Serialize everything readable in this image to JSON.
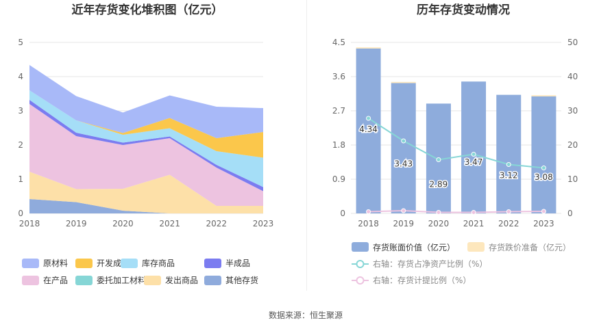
{
  "source_label": "数据来源：恒生聚源",
  "chart_data": [
    {
      "type": "area",
      "stacked": true,
      "title": "近年存货变化堆积图（亿元）",
      "categories": [
        "2018",
        "2019",
        "2020",
        "2021",
        "2022",
        "2023"
      ],
      "ylim": [
        0,
        5
      ],
      "yticks": [
        0,
        1,
        2,
        3,
        4,
        5
      ],
      "grid": true,
      "legend_position": "bottom",
      "series": [
        {
          "name": "其他存货",
          "color": "#8fabdc",
          "values": [
            0.42,
            0.33,
            0.08,
            0.0,
            0.0,
            0.0
          ]
        },
        {
          "name": "发出商品",
          "color": "#fde0a8",
          "values": [
            0.8,
            0.38,
            0.64,
            1.13,
            0.22,
            0.22
          ]
        },
        {
          "name": "委托加工材料",
          "color": "#86d6d6",
          "values": [
            0.0,
            0.0,
            0.0,
            0.0,
            0.0,
            0.0
          ]
        },
        {
          "name": "在产品",
          "color": "#edc3e0",
          "values": [
            1.98,
            1.55,
            1.28,
            1.07,
            1.12,
            0.43
          ]
        },
        {
          "name": "半成品",
          "color": "#7b7cf0",
          "values": [
            0.12,
            0.1,
            0.07,
            0.05,
            0.08,
            0.12
          ]
        },
        {
          "name": "库存商品",
          "color": "#a5def7",
          "values": [
            0.28,
            0.36,
            0.23,
            0.24,
            0.4,
            0.86
          ]
        },
        {
          "name": "开发成本",
          "color": "#fbc74b",
          "values": [
            0.0,
            0.0,
            0.05,
            0.3,
            0.38,
            0.75
          ]
        },
        {
          "name": "原材料",
          "color": "#a8b9f8",
          "values": [
            0.74,
            0.71,
            0.6,
            0.66,
            0.92,
            0.7
          ]
        }
      ],
      "legend_order": [
        "原材料",
        "开发成本",
        "库存商品",
        "半成品",
        "在产品",
        "委托加工材料",
        "发出商品",
        "其他存货"
      ]
    },
    {
      "type": "bar",
      "title": "历年存货变动情况",
      "categories": [
        "2018",
        "2019",
        "2020",
        "2021",
        "2022",
        "2023"
      ],
      "ylim_left": [
        0,
        4.5
      ],
      "yticks_left": [
        "0",
        "0.9",
        "1.8",
        "2.7",
        "3.6",
        "4.5"
      ],
      "ylim_right": [
        0,
        50
      ],
      "yticks_right": [
        "0",
        "10",
        "20",
        "30",
        "40",
        "50"
      ],
      "grid": true,
      "legend_position": "bottom",
      "bar_series": [
        {
          "name": "存货账面价值（亿元）",
          "color": "#8eacdc",
          "values": [
            4.34,
            3.43,
            2.89,
            3.47,
            3.12,
            3.08
          ],
          "labels": [
            "4.34",
            "3.43",
            "2.89",
            "3.47",
            "3.12",
            "3.08"
          ]
        },
        {
          "name": "存货跌价准备（亿元）",
          "color": "#fde7bd",
          "values": [
            0.03,
            0.03,
            0.0,
            0.0,
            0.0,
            0.03
          ]
        }
      ],
      "line_series": [
        {
          "name": "右轴：存货占净资产比例（%）",
          "color": "#86d6d6",
          "values": [
            27.8,
            21.2,
            15.7,
            17.3,
            14.3,
            13.3
          ]
        },
        {
          "name": "右轴：存货计提比例（%）",
          "color": "#edc3e0",
          "values": [
            0.5,
            0.8,
            0.3,
            0.3,
            0.5,
            0.6
          ]
        }
      ]
    }
  ]
}
